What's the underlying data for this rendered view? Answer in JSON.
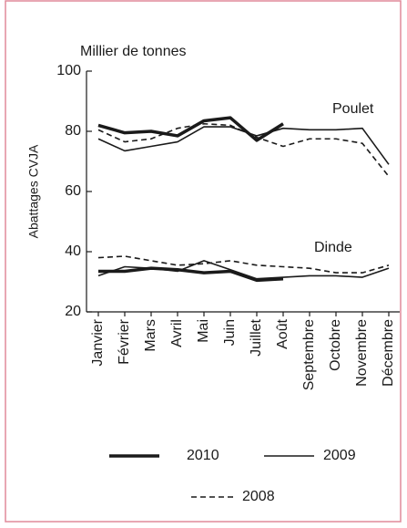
{
  "chart_data": {
    "type": "line",
    "unit_label": "Millier de tonnes",
    "y_label": "Abattages CVJA",
    "categories": [
      "Janvier",
      "Février",
      "Mars",
      "Avril",
      "Mai",
      "Juin",
      "Juillet",
      "Août",
      "Septembre",
      "Octobre",
      "Novembre",
      "Décembre"
    ],
    "ylim": [
      20,
      100
    ],
    "yticks": [
      20,
      40,
      60,
      80,
      100
    ],
    "color": "#1a1a1a",
    "legend": [
      {
        "name": "2010",
        "style": "thick"
      },
      {
        "name": "2009",
        "style": "thin"
      },
      {
        "name": "2008",
        "style": "dashed"
      }
    ],
    "groups": [
      {
        "label": "Poulet",
        "series": [
          {
            "values": [
              82,
              79.5,
              80,
              78.5,
              83.5,
              84.5,
              77,
              82.5,
              null,
              null,
              null,
              null
            ]
          },
          {
            "values": [
              77.5,
              73.5,
              75,
              76.5,
              81.5,
              81.5,
              78.5,
              81,
              80.5,
              80.5,
              81,
              69
            ]
          },
          {
            "values": [
              80.5,
              76.5,
              77.5,
              81,
              82.5,
              82,
              78,
              75,
              77.5,
              77.5,
              76,
              65
            ]
          }
        ]
      },
      {
        "label": "Dinde",
        "series": [
          {
            "values": [
              33.5,
              33.5,
              34.5,
              34,
              33,
              33.5,
              30.5,
              31,
              null,
              null,
              null,
              null
            ]
          },
          {
            "values": [
              32,
              35,
              34.5,
              33.5,
              37,
              34,
              31,
              31.5,
              32,
              32,
              31.5,
              34.5
            ]
          },
          {
            "values": [
              38,
              38.5,
              37,
              35.5,
              36,
              37,
              35.5,
              35,
              34.5,
              33,
              33,
              35.5
            ]
          }
        ]
      }
    ]
  }
}
